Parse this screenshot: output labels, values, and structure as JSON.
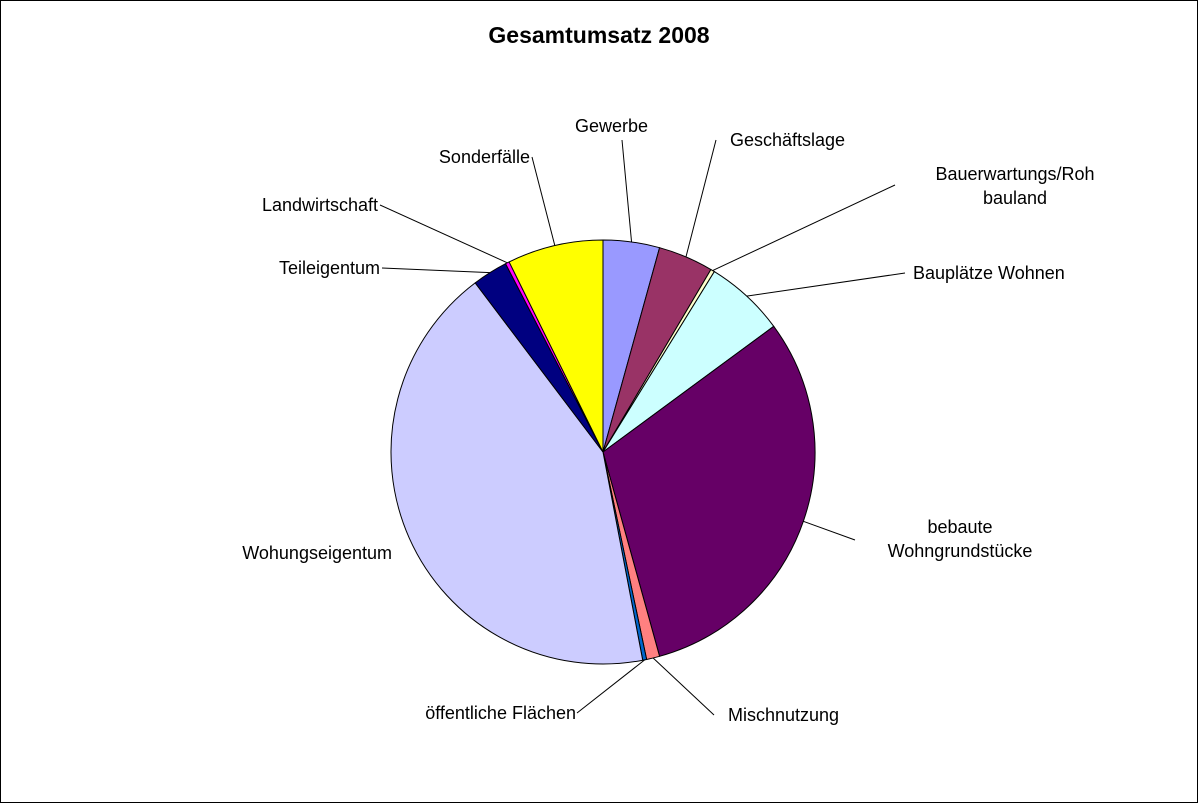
{
  "chart_data": {
    "type": "pie",
    "title": "Gesamtumsatz 2008",
    "categories": [
      "Gewerbe",
      "Geschäftslage",
      "Bauerwartungs/Roh bauland",
      "Bauplätze Wohnen",
      "bebaute Wohngrundstücke",
      "Mischnutzung",
      "öffentliche Flächen",
      "Wohungseigentum",
      "Teileigentum",
      "Landwirtschaft",
      "Sonderfälle"
    ],
    "values": [
      4.3,
      4.2,
      0.3,
      6.1,
      30.8,
      1.0,
      0.3,
      42.7,
      2.7,
      0.3,
      7.3
    ],
    "colors": [
      "#9999ff",
      "#993366",
      "#ffffcc",
      "#ccffff",
      "#660066",
      "#ff8080",
      "#0066cc",
      "#ccccff",
      "#000080",
      "#ff00ff",
      "#ffff00"
    ]
  }
}
